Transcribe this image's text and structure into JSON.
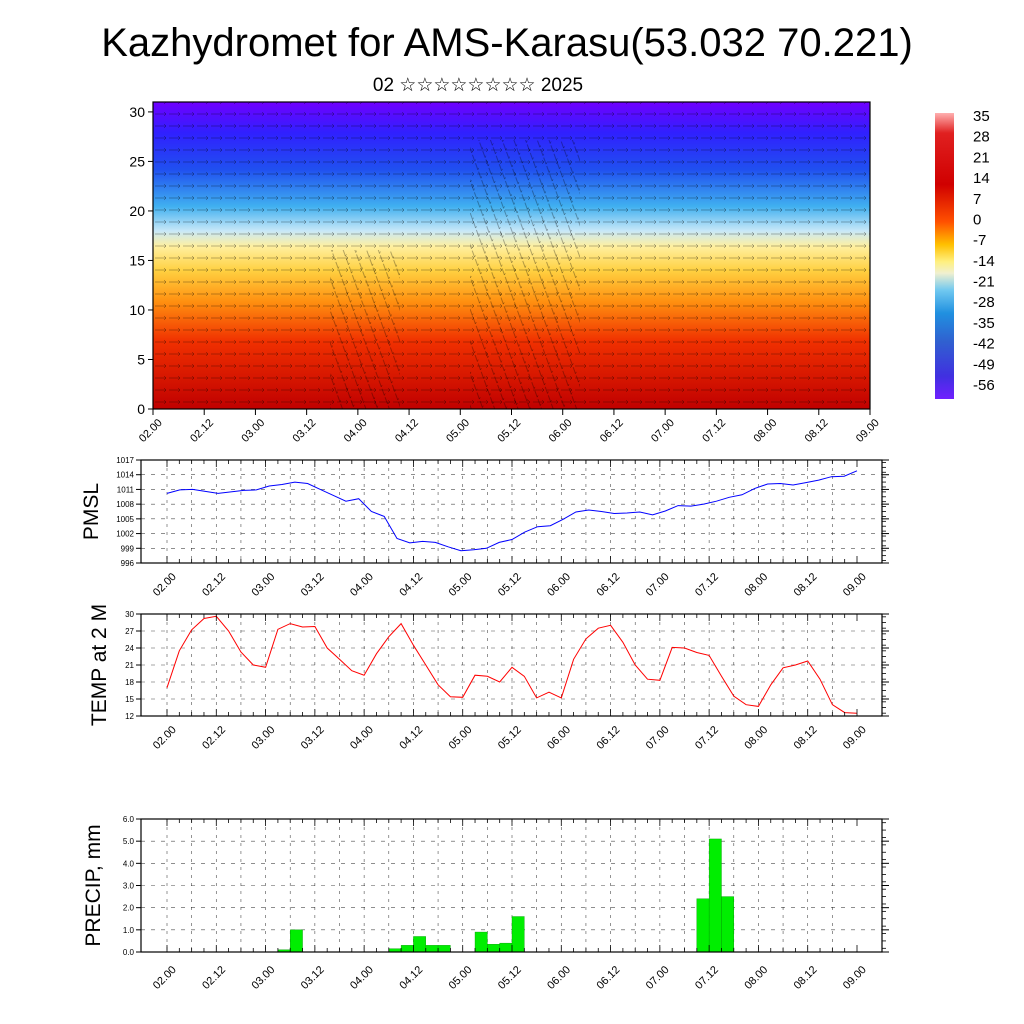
{
  "title": "Kazhydromet for AMS-Karasu(53.032 70.221)",
  "subtitle": "02 ☆☆☆☆☆☆☆☆ 2025",
  "time_ticks": [
    "02.00",
    "02.12",
    "03.00",
    "03.12",
    "04.00",
    "04.12",
    "05.00",
    "05.12",
    "06.00",
    "06.12",
    "07.00",
    "07.12",
    "08.00",
    "08.12",
    "09.00"
  ],
  "chart_data": [
    {
      "type": "heatmap",
      "name": "temperature-cross-section",
      "x_ticks": [
        "02.00",
        "02.12",
        "03.00",
        "03.12",
        "04.00",
        "04.12",
        "05.00",
        "05.12",
        "06.00",
        "06.12",
        "07.00",
        "07.12",
        "08.00",
        "08.12",
        "09.00"
      ],
      "y_ticks": [
        0,
        5,
        10,
        15,
        20,
        25,
        30
      ],
      "ylim": [
        0,
        31
      ],
      "colorbar": {
        "labels": [
          "35",
          "28",
          "21",
          "14",
          "7",
          "0",
          "-7",
          "-14",
          "-21",
          "-28",
          "-35",
          "-42",
          "-49",
          "-56"
        ]
      }
    },
    {
      "type": "line",
      "ylabel": "PMSL",
      "ylim": [
        996,
        1017
      ],
      "y_ticks": [
        996,
        999,
        1002,
        1005,
        1008,
        1011,
        1014,
        1017
      ],
      "x_ticks": [
        "02.00",
        "02.12",
        "03.00",
        "03.12",
        "04.00",
        "04.12",
        "05.00",
        "05.12",
        "06.00",
        "06.12",
        "07.00",
        "07.12",
        "08.00",
        "08.12",
        "09.00"
      ],
      "color": "#0000ff",
      "values": [
        1010.2,
        1010.9,
        1011.0,
        1010.6,
        1010.2,
        1010.5,
        1010.8,
        1010.9,
        1011.7,
        1012.0,
        1012.5,
        1012.2,
        1011.0,
        1009.8,
        1008.6,
        1009.1,
        1006.5,
        1005.5,
        1001.0,
        1000.1,
        1000.4,
        1000.2,
        999.3,
        998.5,
        998.7,
        999.0,
        1000.2,
        1000.8,
        1002.3,
        1003.4,
        1003.6,
        1004.9,
        1006.4,
        1006.8,
        1006.5,
        1006.1,
        1006.2,
        1006.4,
        1005.8,
        1006.6,
        1007.7,
        1007.6,
        1008.0,
        1008.6,
        1009.4,
        1009.9,
        1011.2,
        1012.1,
        1012.2,
        1011.9,
        1012.4,
        1012.9,
        1013.6,
        1013.7,
        1014.8
      ]
    },
    {
      "type": "line",
      "ylabel": "TEMP at 2 M",
      "ylim": [
        12,
        30
      ],
      "y_ticks": [
        12,
        15,
        18,
        21,
        24,
        27,
        30
      ],
      "x_ticks": [
        "02.00",
        "02.12",
        "03.00",
        "03.12",
        "04.00",
        "04.12",
        "05.00",
        "05.12",
        "06.00",
        "06.12",
        "07.00",
        "07.12",
        "08.00",
        "08.12",
        "09.00"
      ],
      "color": "#ff0000",
      "values": [
        17.0,
        23.5,
        27.2,
        29.2,
        29.6,
        27.0,
        23.3,
        21.0,
        20.6,
        27.3,
        28.3,
        27.7,
        27.8,
        24.0,
        22.0,
        20.0,
        19.2,
        23.0,
        26.0,
        28.3,
        24.5,
        21.0,
        17.5,
        15.4,
        15.3,
        19.2,
        19.0,
        18.0,
        20.6,
        19.0,
        15.2,
        16.2,
        15.2,
        22.0,
        25.6,
        27.5,
        28.0,
        25.0,
        21.0,
        18.5,
        18.3,
        24.1,
        24.0,
        23.2,
        22.7,
        19.0,
        15.5,
        14.0,
        13.7,
        17.5,
        20.5,
        21.0,
        21.7,
        18.5,
        14.0,
        12.6,
        12.5
      ]
    },
    {
      "type": "bar",
      "ylabel": "PRECIP, mm",
      "ylim": [
        0,
        6
      ],
      "y_ticks": [
        "0.0",
        "1.0",
        "2.0",
        "3.0",
        "4.0",
        "5.0",
        "6.0"
      ],
      "x_ticks": [
        "02.00",
        "02.12",
        "03.00",
        "03.12",
        "04.00",
        "04.12",
        "05.00",
        "05.12",
        "06.00",
        "06.12",
        "07.00",
        "07.12",
        "08.00",
        "08.12",
        "09.00"
      ],
      "color": "#00ee00",
      "bin_hours": 3,
      "bars": [
        {
          "start_hour": 27,
          "value": 0.1
        },
        {
          "start_hour": 30,
          "value": 1.0
        },
        {
          "start_hour": 54,
          "value": 0.15
        },
        {
          "start_hour": 57,
          "value": 0.3
        },
        {
          "start_hour": 60,
          "value": 0.7
        },
        {
          "start_hour": 63,
          "value": 0.3
        },
        {
          "start_hour": 66,
          "value": 0.3
        },
        {
          "start_hour": 75,
          "value": 0.9
        },
        {
          "start_hour": 78,
          "value": 0.35
        },
        {
          "start_hour": 81,
          "value": 0.4
        },
        {
          "start_hour": 84,
          "value": 1.6
        },
        {
          "start_hour": 129,
          "value": 2.4
        },
        {
          "start_hour": 132,
          "value": 5.1
        },
        {
          "start_hour": 135,
          "value": 2.5
        }
      ]
    }
  ]
}
